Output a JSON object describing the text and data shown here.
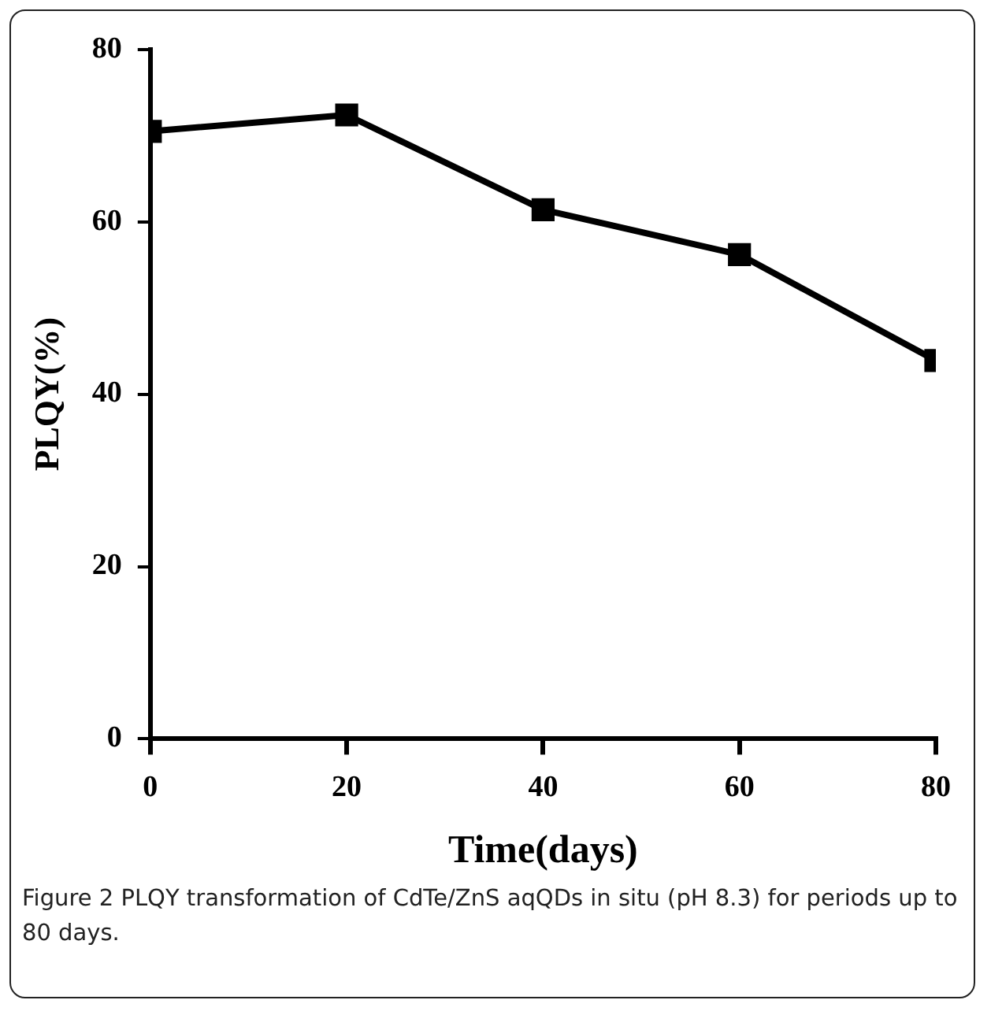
{
  "chart_data": {
    "type": "line",
    "xlabel": "Time(days)",
    "ylabel": "PLQY(%)",
    "x": [
      0,
      20,
      40,
      60,
      80
    ],
    "series": [
      {
        "color": "#000000",
        "values": [
          70.5,
          72.4,
          61.4,
          56.2,
          43.9
        ]
      }
    ],
    "xlim": [
      0,
      80
    ],
    "xticks": [
      0,
      20,
      40,
      60,
      80
    ],
    "ylim": [
      0,
      80
    ],
    "yticks": [
      0,
      20,
      40,
      60,
      80
    ],
    "grid": false,
    "legend": false,
    "marker": "square",
    "line_style": "solid",
    "annotations": [
      "Figure 2 PLQY transformation of CdTe/ZnS aqQDs in situ (pH 8.3) for periods up to 80 days."
    ]
  }
}
